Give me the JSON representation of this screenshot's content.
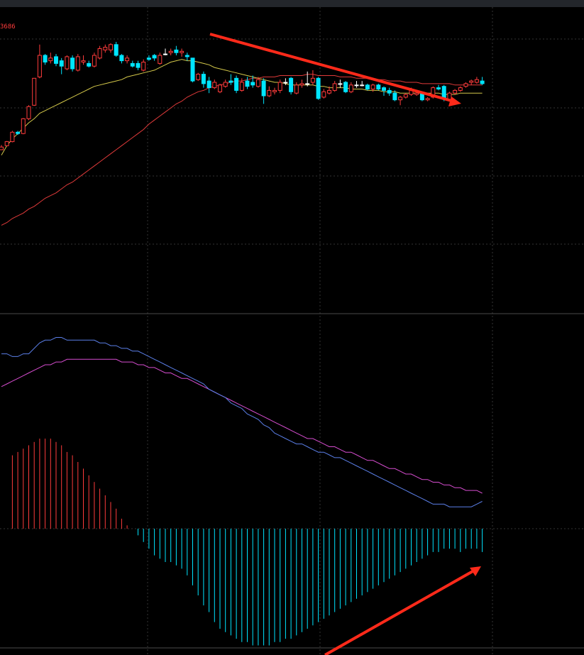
{
  "chart_data": [
    {
      "type": "candlestick",
      "title": "",
      "price_marker": "3686",
      "colors": {
        "up": "#ff3b3b",
        "down": "#00e5ff",
        "doji": "#ffffff",
        "ma_fast": "#d4c84a",
        "ma_slow": "#e03a3a",
        "arrow": "#ff2a1a",
        "grid": "#333333"
      },
      "candles": [
        [
          1.0,
          1.2,
          1.05,
          1.35
        ],
        [
          1.3,
          1.6,
          1.25,
          1.65
        ],
        [
          1.6,
          2.3,
          1.55,
          2.4
        ],
        [
          2.3,
          2.2,
          2.1,
          2.4
        ],
        [
          2.2,
          3.3,
          2.15,
          3.35
        ],
        [
          3.3,
          4.2,
          3.2,
          4.3
        ],
        [
          4.3,
          6.3,
          4.25,
          6.3
        ],
        [
          6.4,
          8.0,
          6.3,
          8.8
        ],
        [
          8.0,
          7.5,
          7.3,
          8.1
        ],
        [
          7.6,
          7.8,
          7.4,
          8.2
        ],
        [
          7.9,
          7.4,
          7.2,
          8.1
        ],
        [
          7.6,
          7.2,
          6.6,
          7.8
        ],
        [
          7.0,
          7.9,
          6.9,
          8.0
        ],
        [
          7.8,
          7.0,
          6.8,
          8.0
        ],
        [
          6.9,
          7.9,
          6.8,
          8.1
        ],
        [
          7.5,
          7.6,
          7.3,
          8.0
        ],
        [
          7.4,
          7.2,
          7.1,
          7.6
        ],
        [
          7.2,
          8.0,
          7.1,
          8.2
        ],
        [
          7.8,
          8.5,
          7.7,
          8.7
        ],
        [
          8.4,
          8.6,
          8.2,
          8.8
        ],
        [
          8.4,
          8.8,
          8.2,
          8.9
        ],
        [
          8.8,
          8.0,
          7.9,
          9.0
        ],
        [
          8.0,
          7.6,
          7.4,
          8.1
        ],
        [
          7.6,
          7.8,
          7.4,
          8.0
        ],
        [
          7.4,
          7.2,
          7.1,
          7.6
        ],
        [
          7.4,
          7.1,
          6.9,
          7.6
        ],
        [
          6.9,
          7.5,
          6.8,
          7.7
        ],
        [
          7.8,
          7.7,
          7.6,
          8.0
        ],
        [
          8.0,
          7.8,
          7.6,
          8.1
        ],
        [
          7.4,
          8.0,
          7.3,
          8.2
        ],
        [
          8.1,
          8.1,
          8.0,
          8.5
        ],
        [
          8.2,
          8.3,
          8.0,
          8.5
        ],
        [
          8.4,
          8.2,
          8.0,
          8.7
        ],
        [
          8.2,
          8.3,
          7.9,
          8.5
        ],
        [
          8.0,
          7.9,
          7.6,
          8.2
        ],
        [
          7.8,
          6.1,
          6.0,
          7.8
        ],
        [
          6.2,
          6.6,
          6.1,
          6.7
        ],
        [
          6.6,
          5.9,
          5.6,
          6.8
        ],
        [
          6.1,
          5.6,
          5.2,
          6.4
        ],
        [
          5.6,
          6.0,
          5.5,
          6.2
        ],
        [
          5.3,
          5.8,
          5.2,
          5.9
        ],
        [
          5.7,
          6.0,
          5.6,
          6.2
        ],
        [
          6.1,
          6.0,
          5.8,
          6.6
        ],
        [
          6.3,
          5.4,
          5.2,
          6.5
        ],
        [
          5.4,
          6.0,
          5.3,
          6.3
        ],
        [
          6.1,
          5.7,
          5.5,
          6.4
        ],
        [
          6.0,
          5.8,
          5.6,
          6.5
        ],
        [
          5.7,
          6.2,
          5.6,
          6.4
        ],
        [
          6.1,
          5.0,
          4.4,
          6.3
        ],
        [
          5.0,
          5.4,
          4.9,
          5.7
        ],
        [
          5.3,
          5.4,
          5.1,
          5.6
        ],
        [
          5.4,
          6.0,
          5.2,
          6.2
        ],
        [
          6.0,
          6.0,
          5.8,
          6.3
        ],
        [
          6.3,
          5.3,
          5.1,
          6.4
        ],
        [
          5.2,
          5.8,
          5.1,
          6.0
        ],
        [
          5.8,
          5.9,
          5.6,
          6.2
        ],
        [
          5.9,
          5.9,
          5.7,
          6.8
        ],
        [
          6.0,
          6.3,
          5.8,
          6.9
        ],
        [
          6.3,
          4.8,
          4.7,
          6.4
        ],
        [
          4.9,
          5.3,
          4.8,
          5.5
        ],
        [
          5.2,
          5.4,
          5.1,
          5.7
        ],
        [
          5.4,
          5.9,
          5.3,
          6.1
        ],
        [
          5.9,
          5.9,
          5.6,
          6.2
        ],
        [
          6.0,
          5.3,
          5.2,
          6.1
        ],
        [
          5.3,
          5.8,
          5.2,
          6.0
        ],
        [
          5.8,
          5.8,
          5.6,
          6.1
        ],
        [
          5.8,
          5.8,
          5.7,
          6.1
        ],
        [
          5.8,
          5.5,
          5.4,
          5.9
        ],
        [
          5.5,
          5.8,
          5.3,
          5.9
        ],
        [
          5.8,
          5.5,
          5.4,
          5.9
        ],
        [
          5.6,
          5.4,
          5.0,
          5.7
        ],
        [
          5.4,
          5.2,
          5.0,
          5.6
        ],
        [
          5.2,
          4.7,
          4.6,
          5.4
        ],
        [
          4.7,
          4.9,
          4.3,
          5.0
        ],
        [
          4.9,
          5.1,
          4.8,
          5.2
        ],
        [
          5.1,
          5.5,
          5.0,
          5.6
        ],
        [
          5.1,
          5.2,
          5.0,
          5.3
        ],
        [
          5.2,
          4.7,
          4.6,
          5.3
        ],
        [
          4.7,
          4.8,
          4.6,
          4.9
        ],
        [
          4.9,
          5.6,
          4.8,
          5.7
        ],
        [
          5.6,
          5.5,
          5.4,
          5.8
        ],
        [
          5.7,
          4.8,
          4.6,
          5.8
        ],
        [
          4.7,
          5.2,
          4.6,
          5.3
        ],
        [
          5.2,
          5.4,
          5.1,
          5.5
        ],
        [
          5.4,
          5.6,
          5.3,
          5.7
        ],
        [
          5.7,
          5.9,
          5.6,
          6.0
        ],
        [
          6.0,
          6.1,
          5.8,
          6.2
        ],
        [
          6.0,
          6.2,
          5.9,
          6.4
        ],
        [
          6.1,
          5.9,
          5.8,
          6.4
        ]
      ],
      "ma_fast": [
        0.6,
        1.3,
        1.8,
        2.2,
        2.6,
        3.0,
        3.3,
        3.7,
        3.9,
        4.1,
        4.3,
        4.5,
        4.7,
        4.9,
        5.1,
        5.3,
        5.5,
        5.7,
        5.8,
        5.9,
        6.0,
        6.1,
        6.2,
        6.4,
        6.5,
        6.6,
        6.7,
        6.8,
        6.9,
        7.1,
        7.3,
        7.5,
        7.6,
        7.7,
        7.6,
        7.6,
        7.5,
        7.4,
        7.3,
        7.1,
        7.0,
        6.9,
        6.8,
        6.7,
        6.6,
        6.5,
        6.4,
        6.3,
        6.2,
        6.1,
        6.0,
        6.0,
        5.9,
        5.8,
        5.8,
        5.8,
        5.8,
        5.8,
        5.7,
        5.7,
        5.6,
        5.6,
        5.6,
        5.6,
        5.5,
        5.5,
        5.5,
        5.4,
        5.4,
        5.4,
        5.3,
        5.3,
        5.3,
        5.2,
        5.2,
        5.2,
        5.2,
        5.2,
        5.2,
        5.2,
        5.2,
        5.1,
        5.1,
        5.1,
        5.2,
        5.2,
        5.2,
        5.2,
        5.2
      ],
      "ma_slow": [
        -4.6,
        -4.4,
        -4.1,
        -3.9,
        -3.7,
        -3.4,
        -3.2,
        -2.9,
        -2.6,
        -2.4,
        -2.2,
        -1.9,
        -1.6,
        -1.4,
        -1.1,
        -0.8,
        -0.5,
        -0.2,
        0.1,
        0.4,
        0.7,
        1.0,
        1.3,
        1.6,
        1.9,
        2.2,
        2.5,
        2.9,
        3.2,
        3.5,
        3.8,
        4.1,
        4.4,
        4.6,
        4.9,
        5.1,
        5.3,
        5.4,
        5.6,
        5.7,
        5.8,
        5.9,
        6.0,
        6.1,
        6.1,
        6.2,
        6.3,
        6.3,
        6.4,
        6.4,
        6.4,
        6.5,
        6.5,
        6.5,
        6.5,
        6.5,
        6.6,
        6.6,
        6.5,
        6.5,
        6.5,
        6.5,
        6.4,
        6.4,
        6.4,
        6.3,
        6.3,
        6.3,
        6.2,
        6.2,
        6.2,
        6.1,
        6.1,
        6.1,
        6.0,
        6.0,
        6.0,
        5.9,
        5.9,
        5.9,
        5.9,
        5.9,
        5.9,
        5.8,
        5.8,
        5.8,
        5.8,
        5.8,
        5.8
      ]
    },
    {
      "type": "macd",
      "title": "",
      "colors": {
        "dif": "#5b7fe8",
        "dea": "#d64dcf",
        "hist_pos": "#ff3b3b",
        "hist_neg": "#00e5ff",
        "arrow": "#ff2a1a",
        "grid": "#333333"
      },
      "dif": [
        64,
        64,
        63,
        63,
        64,
        64,
        66,
        68,
        69,
        69,
        70,
        70,
        69,
        69,
        69,
        69,
        69,
        69,
        68,
        68,
        67,
        67,
        66,
        66,
        65,
        65,
        64,
        63,
        62,
        61,
        60,
        59,
        58,
        57,
        56,
        55,
        54,
        53,
        51,
        50,
        49,
        48,
        46,
        45,
        44,
        42,
        41,
        40,
        38,
        37,
        35,
        34,
        33,
        32,
        31,
        31,
        30,
        29,
        28,
        28,
        27,
        26,
        26,
        25,
        24,
        23,
        22,
        21,
        20,
        19,
        18,
        17,
        16,
        15,
        14,
        13,
        12,
        11,
        10,
        9,
        9,
        9,
        8,
        8,
        8,
        8,
        8,
        9,
        10
      ],
      "dea": [
        52,
        53,
        54,
        55,
        56,
        57,
        58,
        59,
        60,
        60,
        61,
        61,
        62,
        62,
        62,
        62,
        62,
        62,
        62,
        62,
        62,
        62,
        61,
        61,
        61,
        60,
        60,
        59,
        59,
        58,
        57,
        57,
        56,
        55,
        55,
        54,
        53,
        52,
        51,
        50,
        49,
        48,
        47,
        46,
        45,
        44,
        43,
        42,
        41,
        40,
        39,
        38,
        37,
        36,
        35,
        34,
        33,
        33,
        32,
        31,
        30,
        30,
        29,
        28,
        28,
        27,
        26,
        25,
        25,
        24,
        23,
        22,
        22,
        21,
        20,
        20,
        19,
        18,
        18,
        17,
        17,
        16,
        16,
        15,
        15,
        14,
        14,
        14,
        13
      ],
      "histogram": [
        0,
        0,
        22,
        23,
        24,
        25,
        26,
        27,
        27,
        27,
        26,
        25,
        23,
        22,
        20,
        18,
        16,
        14,
        12,
        10,
        8,
        6,
        3,
        1,
        0,
        -2,
        -4,
        -6,
        -8,
        -9,
        -10,
        -10,
        -11,
        -12,
        -14,
        -17,
        -20,
        -23,
        -25,
        -28,
        -30,
        -31,
        -32,
        -33,
        -34,
        -34,
        -35,
        -35,
        -35,
        -35,
        -34,
        -34,
        -33,
        -33,
        -32,
        -31,
        -30,
        -29,
        -28,
        -27,
        -26,
        -25,
        -24,
        -23,
        -22,
        -21,
        -20,
        -19,
        -18,
        -17,
        -16,
        -15,
        -14,
        -13,
        -12,
        -11,
        -10,
        -9,
        -8,
        -7,
        -7,
        -6,
        -6,
        -6,
        -7,
        -6,
        -6,
        -6,
        -7
      ]
    }
  ]
}
